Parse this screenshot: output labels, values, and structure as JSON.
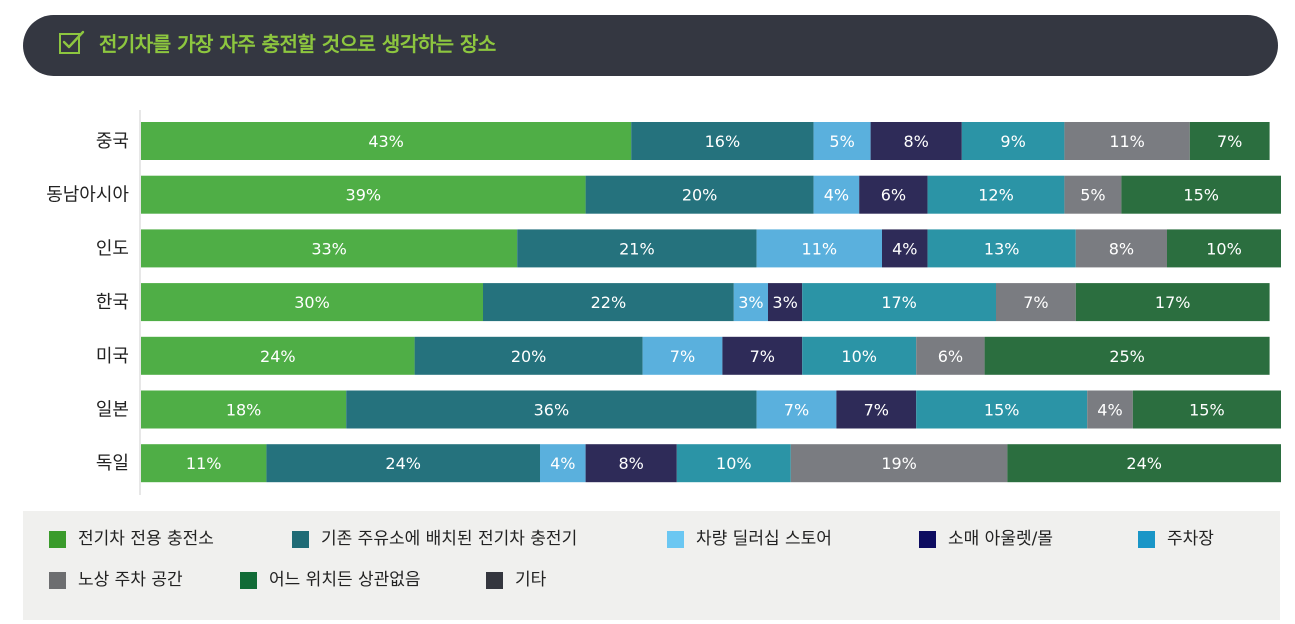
{
  "title": "전기차를 가장 자주 충전할 것으로 생각하는 장소",
  "title_icon": "checkbox-check-icon",
  "colors": {
    "title_bg": "#343741",
    "title_text": "#8dc63f",
    "legend_bg": "#f0f0ee"
  },
  "chart_data": {
    "type": "bar",
    "orientation": "horizontal",
    "stacked": true,
    "title": "전기차를 가장 자주 충전할 것으로 생각하는 장소",
    "xlabel": "",
    "ylabel": "",
    "xlim": [
      0,
      100
    ],
    "grid": false,
    "legend_position": "bottom",
    "categories": [
      "중국",
      "동남아시아",
      "인도",
      "한국",
      "미국",
      "일본",
      "독일"
    ],
    "series": [
      {
        "name": "전기차 전용 충전소",
        "color": "#4fae46",
        "swatch": "#3a9b2b",
        "values": [
          43,
          39,
          33,
          30,
          24,
          18,
          11
        ]
      },
      {
        "name": "기존 주유소에 배치된 전기차 충전기",
        "color": "#25727d",
        "swatch": "#1f6b75",
        "values": [
          16,
          20,
          21,
          22,
          20,
          36,
          24
        ]
      },
      {
        "name": "차량 딜러십 스토어",
        "color": "#5ab0dd",
        "swatch": "#6bc7f2",
        "values": [
          5,
          4,
          11,
          3,
          7,
          7,
          4
        ]
      },
      {
        "name": "소매 아울렛/몰",
        "color": "#2e2b58",
        "swatch": "#0d0c60",
        "values": [
          8,
          6,
          4,
          3,
          7,
          7,
          8
        ]
      },
      {
        "name": "주차장",
        "color": "#2b94a6",
        "swatch": "#1a96c7",
        "values": [
          9,
          12,
          13,
          17,
          10,
          15,
          10
        ]
      },
      {
        "name": "노상 주차 공간",
        "color": "#7a7c81",
        "swatch": "#6d6e70",
        "values": [
          11,
          5,
          8,
          7,
          6,
          4,
          19
        ]
      },
      {
        "name": "어느 위치든 상관없음",
        "color": "#2b6e3f",
        "swatch": "#116b36",
        "values": [
          7,
          15,
          10,
          17,
          25,
          15,
          24
        ]
      },
      {
        "name": "기타",
        "color": "#3a3d45",
        "swatch": "#34363e",
        "values": [
          0,
          0,
          0,
          0,
          0,
          0,
          0.4
        ]
      }
    ]
  }
}
